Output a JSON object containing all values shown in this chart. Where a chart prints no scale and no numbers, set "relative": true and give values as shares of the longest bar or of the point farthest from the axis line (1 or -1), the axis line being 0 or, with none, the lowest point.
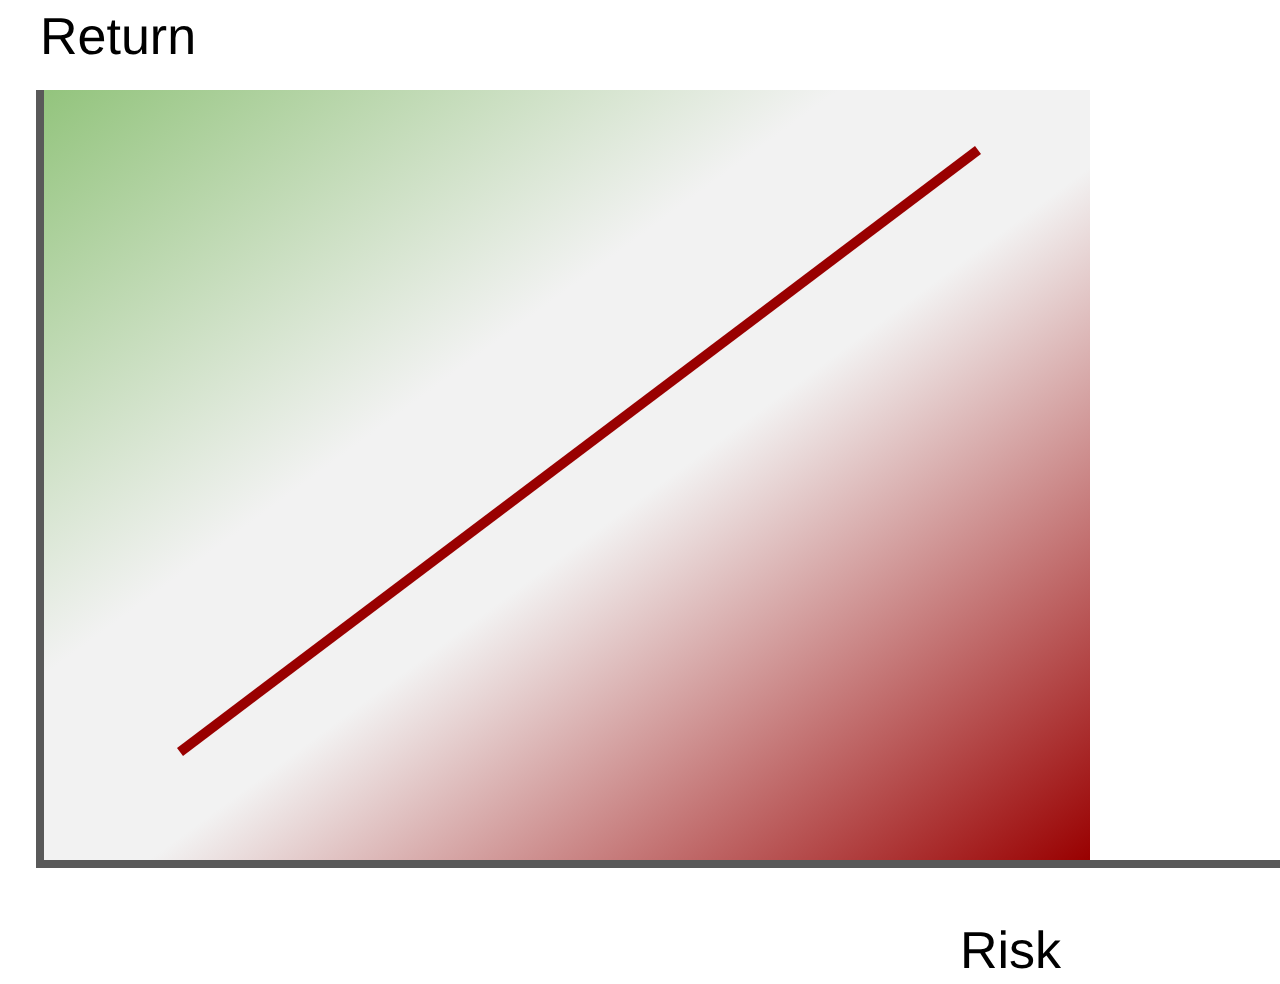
{
  "chart_data": {
    "type": "line",
    "xlabel": "Risk",
    "ylabel": "Return",
    "relative": true,
    "marker": "none",
    "line_style": "solid",
    "categories": [
      null,
      null
    ],
    "series": [
      {
        "color": "#990000",
        "values": [
          0.157,
          1
        ]
      }
    ]
  }
}
